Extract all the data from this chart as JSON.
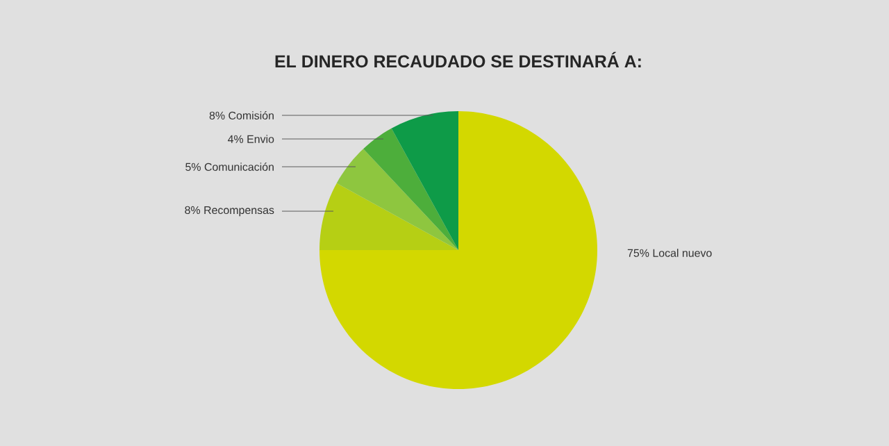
{
  "chart_data": {
    "type": "pie",
    "title": "EL DINERO RECAUDADO SE DESTINARÁ A:",
    "categories": [
      "Local nuevo",
      "Recompensas",
      "Comunicación",
      "Envio",
      "Comisión"
    ],
    "values": [
      75,
      8,
      5,
      4,
      8
    ],
    "value_labels": [
      "75%",
      "8%",
      "5%",
      "4%",
      "8%"
    ],
    "colors": [
      "#d3d800",
      "#b6cf14",
      "#8ec63f",
      "#4dae3b",
      "#0e9b48"
    ]
  }
}
